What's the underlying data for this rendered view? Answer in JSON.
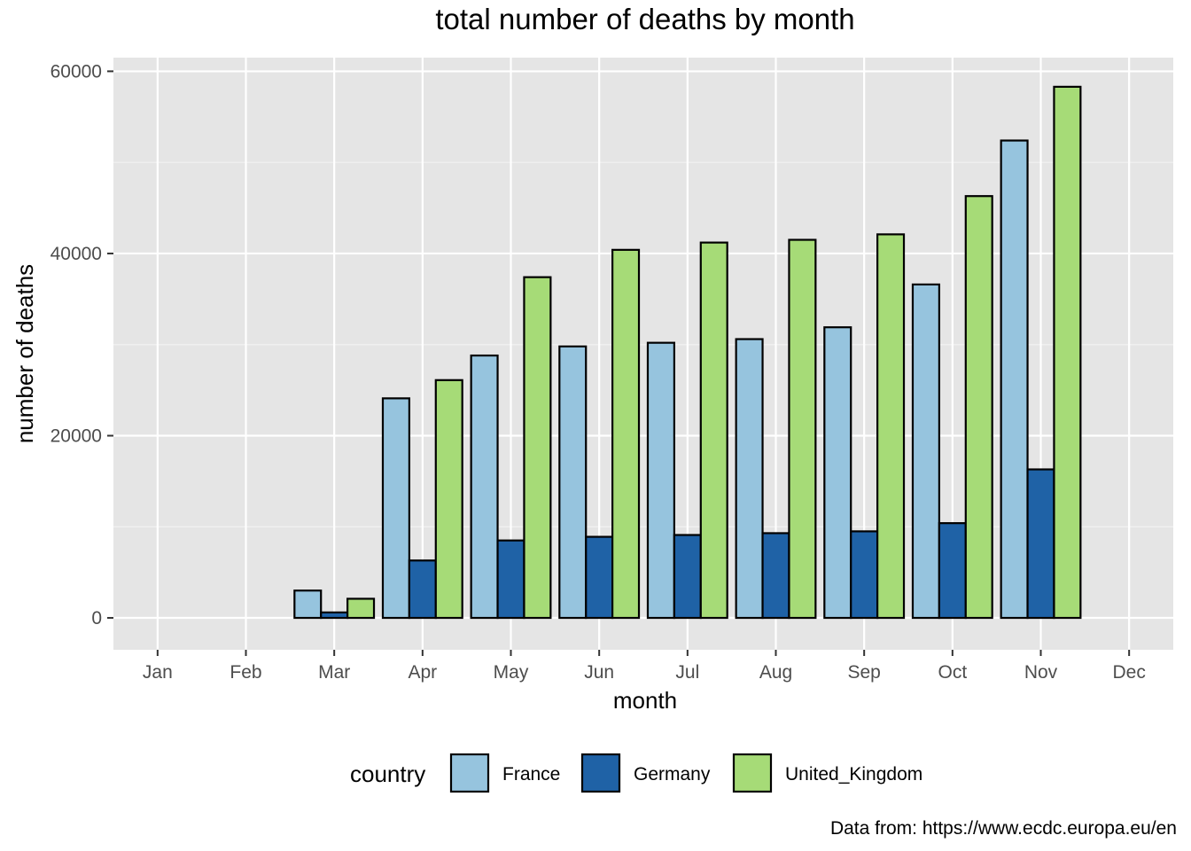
{
  "chart_data": {
    "type": "bar",
    "title": "total number of deaths by month",
    "xlabel": "month",
    "ylabel": "number of deaths",
    "caption": "Data from: https://www.ecdc.europa.eu/en",
    "categories": [
      "Jan",
      "Feb",
      "Mar",
      "Apr",
      "May",
      "Jun",
      "Jul",
      "Aug",
      "Sep",
      "Oct",
      "Nov",
      "Dec"
    ],
    "ylim": [
      -3500,
      61500
    ],
    "yticks": [
      0,
      20000,
      40000,
      60000
    ],
    "ytick_labels": [
      "0",
      "20000",
      "40000",
      "60000"
    ],
    "grid": true,
    "legend": {
      "title": "country",
      "position": "bottom"
    },
    "series": [
      {
        "name": "France",
        "color": "#96c4de",
        "values": [
          0,
          0,
          3000,
          24100,
          28800,
          29800,
          30200,
          30600,
          31900,
          36600,
          52400,
          0
        ]
      },
      {
        "name": "Germany",
        "color": "#1f62a6",
        "values": [
          0,
          0,
          600,
          6300,
          8500,
          8900,
          9100,
          9300,
          9500,
          10400,
          16300,
          0
        ]
      },
      {
        "name": "United_Kingdom",
        "color": "#a6db77",
        "values": [
          0,
          0,
          2100,
          26100,
          37400,
          40400,
          41200,
          41500,
          42100,
          46300,
          58300,
          0
        ]
      }
    ]
  }
}
